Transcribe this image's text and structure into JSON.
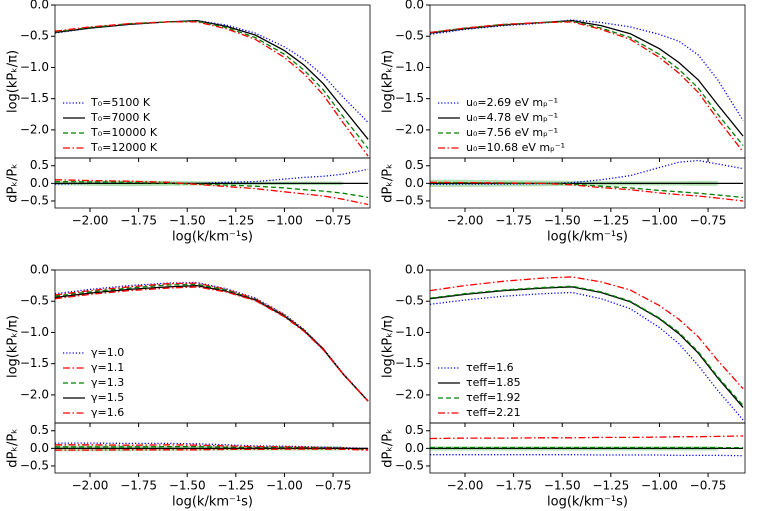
{
  "chart_data": [
    {
      "type": "line",
      "ylabel": "log(kPₖ/π)",
      "residual_ylabel": "dPₖ/Pₖ",
      "xlabel": "log(k/km⁻¹s)",
      "legend": "lower left",
      "xlim": [
        -2.18,
        -0.56
      ],
      "ylim": [
        -2.45,
        0
      ],
      "residual_ylim": [
        -0.7,
        0.72
      ],
      "xticks": [
        {
          "value": -2,
          "label": "−2.00"
        },
        {
          "value": -1.75,
          "label": "−1.75"
        },
        {
          "value": -1.5,
          "label": "−1.50"
        },
        {
          "value": -1.25,
          "label": "−1.25"
        },
        {
          "value": -1,
          "label": "−1.00"
        },
        {
          "value": -0.75,
          "label": "−0.75"
        }
      ],
      "yticks": [
        {
          "value": 0,
          "label": "0.0"
        },
        {
          "value": -0.5,
          "label": "−0.5"
        },
        {
          "value": -1,
          "label": "−1.0"
        },
        {
          "value": -1.5,
          "label": "−1.5"
        },
        {
          "value": -2,
          "label": "−2.0"
        }
      ],
      "residual_yticks": [
        {
          "value": 0.5,
          "label": "0.5"
        },
        {
          "value": 0,
          "label": "0.0"
        },
        {
          "value": -0.5,
          "label": "−0.5"
        }
      ],
      "x": [
        -2.18,
        -2.0,
        -1.8,
        -1.6,
        -1.45,
        -1.3,
        -1.15,
        -1.0,
        -0.9,
        -0.8,
        -0.7,
        -0.57
      ],
      "error_band": [
        0.05,
        0.07,
        0.08,
        0.07,
        0.06,
        0.05,
        0.05,
        0.05,
        0.05,
        0.05,
        0.05,
        null
      ],
      "band_color": "#8fd18f",
      "series": [
        {
          "name": "T₀=5100 K",
          "color": "#0000ff",
          "linestyle": "dotted",
          "values": [
            -0.45,
            -0.37,
            -0.31,
            -0.27,
            -0.25,
            -0.32,
            -0.45,
            -0.67,
            -0.87,
            -1.13,
            -1.47,
            -1.88
          ],
          "residuals": [
            -0.02,
            0,
            0,
            0,
            0,
            0.03,
            0.05,
            0.12,
            0.17,
            0.2,
            0.26,
            0.4
          ]
        },
        {
          "name": "T₀=7000 K",
          "color": "#000000",
          "linestyle": "solid",
          "values": [
            -0.44,
            -0.37,
            -0.31,
            -0.27,
            -0.25,
            -0.34,
            -0.48,
            -0.73,
            -0.96,
            -1.26,
            -1.65,
            -2.15
          ],
          "residuals": [
            0,
            0,
            0,
            0,
            0,
            0,
            0,
            0,
            0,
            0,
            0,
            0
          ]
        },
        {
          "name": "T₀=10000 K",
          "color": "#008000",
          "linestyle": "dashed",
          "values": [
            -0.43,
            -0.36,
            -0.3,
            -0.27,
            -0.26,
            -0.36,
            -0.52,
            -0.79,
            -1.04,
            -1.36,
            -1.78,
            -2.3
          ],
          "residuals": [
            0.05,
            0.04,
            0.03,
            0,
            -0.02,
            -0.05,
            -0.08,
            -0.13,
            -0.18,
            -0.22,
            -0.28,
            -0.4
          ]
        },
        {
          "name": "T₀=12000 K",
          "color": "#ff0000",
          "linestyle": "dashdot",
          "values": [
            -0.42,
            -0.35,
            -0.3,
            -0.27,
            -0.27,
            -0.38,
            -0.55,
            -0.84,
            -1.1,
            -1.44,
            -1.88,
            -2.42
          ],
          "residuals": [
            0.1,
            0.08,
            0.06,
            0.03,
            -0.03,
            -0.09,
            -0.15,
            -0.24,
            -0.3,
            -0.36,
            -0.45,
            -0.6
          ]
        }
      ]
    },
    {
      "type": "line",
      "ylabel": "log(kPₖ/π)",
      "residual_ylabel": "dPₖ/Pₖ",
      "xlabel": "log(k/km⁻¹s)",
      "legend": "lower left",
      "xlim": [
        -2.18,
        -0.56
      ],
      "ylim": [
        -2.45,
        0
      ],
      "residual_ylim": [
        -0.7,
        0.72
      ],
      "xticks": [
        {
          "value": -2,
          "label": "−2.00"
        },
        {
          "value": -1.75,
          "label": "−1.75"
        },
        {
          "value": -1.5,
          "label": "−1.50"
        },
        {
          "value": -1.25,
          "label": "−1.25"
        },
        {
          "value": -1,
          "label": "−1.00"
        },
        {
          "value": -0.75,
          "label": "−0.75"
        }
      ],
      "yticks": [
        {
          "value": 0,
          "label": "0.0"
        },
        {
          "value": -0.5,
          "label": "−0.5"
        },
        {
          "value": -1,
          "label": "−1.0"
        },
        {
          "value": -1.5,
          "label": "−1.5"
        },
        {
          "value": -2,
          "label": "−2.0"
        }
      ],
      "residual_yticks": [
        {
          "value": 0.5,
          "label": "0.5"
        },
        {
          "value": 0,
          "label": "0.0"
        },
        {
          "value": -0.5,
          "label": "−0.5"
        }
      ],
      "x": [
        -2.18,
        -2.0,
        -1.8,
        -1.6,
        -1.45,
        -1.3,
        -1.15,
        -1.0,
        -0.9,
        -0.8,
        -0.7,
        -0.57
      ],
      "error_band": [
        0.1,
        0.1,
        0.09,
        0.08,
        0.07,
        0.06,
        0.06,
        0.06,
        0.06,
        0.07,
        0.07,
        null
      ],
      "band_color": "#8fd18f",
      "series": [
        {
          "name": "u₀=2.69 eV mₚ⁻¹",
          "color": "#0000ff",
          "linestyle": "dotted",
          "values": [
            -0.47,
            -0.39,
            -0.33,
            -0.29,
            -0.24,
            -0.28,
            -0.35,
            -0.47,
            -0.58,
            -0.8,
            -1.2,
            -1.85
          ],
          "residuals": [
            -0.03,
            -0.02,
            -0.02,
            -0.01,
            0.02,
            0.1,
            0.22,
            0.45,
            0.6,
            0.65,
            0.55,
            0.42
          ]
        },
        {
          "name": "u₀=4.78 eV mₚ⁻¹",
          "color": "#000000",
          "linestyle": "solid",
          "values": [
            -0.45,
            -0.38,
            -0.32,
            -0.28,
            -0.25,
            -0.33,
            -0.46,
            -0.7,
            -0.92,
            -1.2,
            -1.6,
            -2.1
          ],
          "residuals": [
            0,
            0,
            0,
            0,
            0,
            0,
            0,
            0,
            0,
            0,
            0,
            0
          ]
        },
        {
          "name": "u₀=7.56 eV mₚ⁻¹",
          "color": "#008000",
          "linestyle": "dashed",
          "values": [
            -0.44,
            -0.37,
            -0.31,
            -0.28,
            -0.26,
            -0.37,
            -0.52,
            -0.79,
            -1.03,
            -1.33,
            -1.75,
            -2.25
          ],
          "residuals": [
            0.02,
            0.02,
            0.01,
            0,
            -0.02,
            -0.08,
            -0.13,
            -0.2,
            -0.24,
            -0.28,
            -0.33,
            -0.4
          ]
        },
        {
          "name": "u₀=10.68 eV mₚ⁻¹",
          "color": "#ff0000",
          "linestyle": "dashdot",
          "values": [
            -0.44,
            -0.37,
            -0.31,
            -0.28,
            -0.27,
            -0.39,
            -0.55,
            -0.84,
            -1.09,
            -1.4,
            -1.83,
            -2.35
          ],
          "residuals": [
            0.03,
            0.02,
            0.01,
            0,
            -0.04,
            -0.12,
            -0.18,
            -0.27,
            -0.32,
            -0.36,
            -0.42,
            -0.5
          ]
        }
      ]
    },
    {
      "type": "line",
      "ylabel": "log(kPₖ/π)",
      "residual_ylabel": "dPₖ/Pₖ",
      "xlabel": "log(k/km⁻¹s)",
      "legend": "lower left",
      "xlim": [
        -2.18,
        -0.56
      ],
      "ylim": [
        -2.45,
        0
      ],
      "residual_ylim": [
        -0.7,
        0.72
      ],
      "xticks": [
        {
          "value": -2,
          "label": "−2.00"
        },
        {
          "value": -1.75,
          "label": "−1.75"
        },
        {
          "value": -1.5,
          "label": "−1.50"
        },
        {
          "value": -1.25,
          "label": "−1.25"
        },
        {
          "value": -1,
          "label": "−1.00"
        },
        {
          "value": -0.75,
          "label": "−0.75"
        }
      ],
      "yticks": [
        {
          "value": 0,
          "label": "0.0"
        },
        {
          "value": -0.5,
          "label": "−0.5"
        },
        {
          "value": -1,
          "label": "−1.0"
        },
        {
          "value": -1.5,
          "label": "−1.5"
        },
        {
          "value": -2,
          "label": "−2.0"
        }
      ],
      "residual_yticks": [
        {
          "value": 0.5,
          "label": "0.5"
        },
        {
          "value": 0,
          "label": "0.0"
        },
        {
          "value": -0.5,
          "label": "−0.5"
        }
      ],
      "x": [
        -2.18,
        -2.0,
        -1.8,
        -1.6,
        -1.45,
        -1.3,
        -1.15,
        -1.0,
        -0.9,
        -0.8,
        -0.7,
        -0.57
      ],
      "error_band": [
        0.08,
        0.08,
        0.08,
        0.07,
        0.07,
        0.06,
        0.06,
        0.06,
        0.06,
        0.06,
        0.06,
        null
      ],
      "band_color": "#8fd18f",
      "series": [
        {
          "name": "γ=1.0",
          "color": "#0000ff",
          "linestyle": "dotted",
          "values": [
            -0.38,
            -0.31,
            -0.25,
            -0.21,
            -0.2,
            -0.3,
            -0.45,
            -0.71,
            -0.95,
            -1.26,
            -1.65,
            -2.1
          ],
          "residuals": [
            0.15,
            0.15,
            0.14,
            0.14,
            0.13,
            0.1,
            0.07,
            0.06,
            0.05,
            0.03,
            0.02,
            0
          ]
        },
        {
          "name": "γ=1.1",
          "color": "#ff0000",
          "linestyle": "dashdot",
          "values": [
            -0.4,
            -0.33,
            -0.27,
            -0.22,
            -0.21,
            -0.31,
            -0.46,
            -0.72,
            -0.96,
            -1.26,
            -1.66,
            -2.1
          ],
          "residuals": [
            0.1,
            0.1,
            0.09,
            0.1,
            0.09,
            0.07,
            0.05,
            0.04,
            0.03,
            0.02,
            0.01,
            -0.02
          ]
        },
        {
          "name": "γ=1.3",
          "color": "#008000",
          "linestyle": "dashed",
          "values": [
            -0.42,
            -0.35,
            -0.29,
            -0.24,
            -0.23,
            -0.32,
            -0.47,
            -0.73,
            -0.96,
            -1.27,
            -1.66,
            -2.1
          ],
          "residuals": [
            0.04,
            0.04,
            0.04,
            0.05,
            0.05,
            0.03,
            0.02,
            0.02,
            0.02,
            0.01,
            0,
            -0.03
          ]
        },
        {
          "name": "γ=1.5",
          "color": "#000000",
          "linestyle": "solid",
          "values": [
            -0.44,
            -0.37,
            -0.31,
            -0.27,
            -0.25,
            -0.34,
            -0.48,
            -0.74,
            -0.97,
            -1.27,
            -1.66,
            -2.1
          ],
          "residuals": [
            0,
            0,
            0,
            0,
            0,
            0,
            0,
            0,
            0,
            0,
            0,
            0
          ]
        },
        {
          "name": "γ=1.6",
          "color": "#ff0000",
          "linestyle": "dashdot",
          "values": [
            -0.46,
            -0.39,
            -0.33,
            -0.29,
            -0.27,
            -0.35,
            -0.49,
            -0.75,
            -0.98,
            -1.28,
            -1.66,
            -2.1
          ],
          "residuals": [
            -0.05,
            -0.05,
            -0.04,
            -0.04,
            -0.04,
            -0.03,
            -0.03,
            -0.02,
            -0.02,
            -0.02,
            -0.03,
            -0.05
          ]
        }
      ]
    },
    {
      "type": "line",
      "ylabel": "log(kPₖ/π)",
      "residual_ylabel": "dPₖ/Pₖ",
      "xlabel": "log(k/km⁻¹s)",
      "legend": "lower left",
      "xlim": [
        -2.18,
        -0.56
      ],
      "ylim": [
        -2.45,
        0
      ],
      "residual_ylim": [
        -0.7,
        0.72
      ],
      "xticks": [
        {
          "value": -2,
          "label": "−2.00"
        },
        {
          "value": -1.75,
          "label": "−1.75"
        },
        {
          "value": -1.5,
          "label": "−1.50"
        },
        {
          "value": -1.25,
          "label": "−1.25"
        },
        {
          "value": -1,
          "label": "−1.00"
        },
        {
          "value": -0.75,
          "label": "−0.75"
        }
      ],
      "yticks": [
        {
          "value": 0,
          "label": "0.0"
        },
        {
          "value": -0.5,
          "label": "−0.5"
        },
        {
          "value": -1,
          "label": "−1.0"
        },
        {
          "value": -1.5,
          "label": "−1.5"
        },
        {
          "value": -2,
          "label": "−2.0"
        }
      ],
      "residual_yticks": [
        {
          "value": 0.5,
          "label": "0.5"
        },
        {
          "value": 0,
          "label": "0.0"
        },
        {
          "value": -0.5,
          "label": "−0.5"
        }
      ],
      "x": [
        -2.18,
        -2.0,
        -1.8,
        -1.6,
        -1.45,
        -1.3,
        -1.15,
        -1.0,
        -0.9,
        -0.8,
        -0.7,
        -0.57
      ],
      "error_band": [
        0.06,
        0.06,
        0.06,
        0.06,
        0.06,
        0.06,
        0.06,
        0.06,
        0.06,
        0.06,
        0.06,
        null
      ],
      "band_color": "#8fd18f",
      "series": [
        {
          "name": "τeff=1.6",
          "color": "#0000ff",
          "linestyle": "dotted",
          "values": [
            -0.55,
            -0.48,
            -0.42,
            -0.38,
            -0.36,
            -0.46,
            -0.62,
            -0.92,
            -1.18,
            -1.53,
            -1.93,
            -2.4
          ],
          "residuals": [
            -0.18,
            -0.18,
            -0.18,
            -0.18,
            -0.18,
            -0.19,
            -0.19,
            -0.19,
            -0.2,
            -0.2,
            -0.2,
            -0.21
          ]
        },
        {
          "name": "τeff=1.85",
          "color": "#000000",
          "linestyle": "solid",
          "values": [
            -0.46,
            -0.39,
            -0.33,
            -0.29,
            -0.27,
            -0.36,
            -0.51,
            -0.78,
            -1.02,
            -1.33,
            -1.73,
            -2.2
          ],
          "residuals": [
            0,
            0,
            0,
            0,
            0,
            0,
            0,
            0,
            0,
            0,
            0,
            0
          ]
        },
        {
          "name": "τeff=1.92",
          "color": "#008000",
          "linestyle": "dashed",
          "values": [
            -0.45,
            -0.38,
            -0.32,
            -0.28,
            -0.26,
            -0.35,
            -0.5,
            -0.77,
            -1.0,
            -1.31,
            -1.71,
            -2.17
          ],
          "residuals": [
            0.02,
            0.02,
            0.02,
            0.02,
            0.02,
            0.02,
            0.02,
            0.02,
            0.02,
            0.02,
            0.02,
            0.02
          ]
        },
        {
          "name": "τeff=2.21",
          "color": "#ff0000",
          "linestyle": "dashdot",
          "values": [
            -0.33,
            -0.25,
            -0.18,
            -0.13,
            -0.11,
            -0.19,
            -0.32,
            -0.57,
            -0.79,
            -1.07,
            -1.45,
            -1.9
          ],
          "residuals": [
            0.28,
            0.29,
            0.29,
            0.3,
            0.3,
            0.31,
            0.31,
            0.32,
            0.33,
            0.33,
            0.34,
            0.35
          ]
        }
      ]
    }
  ]
}
